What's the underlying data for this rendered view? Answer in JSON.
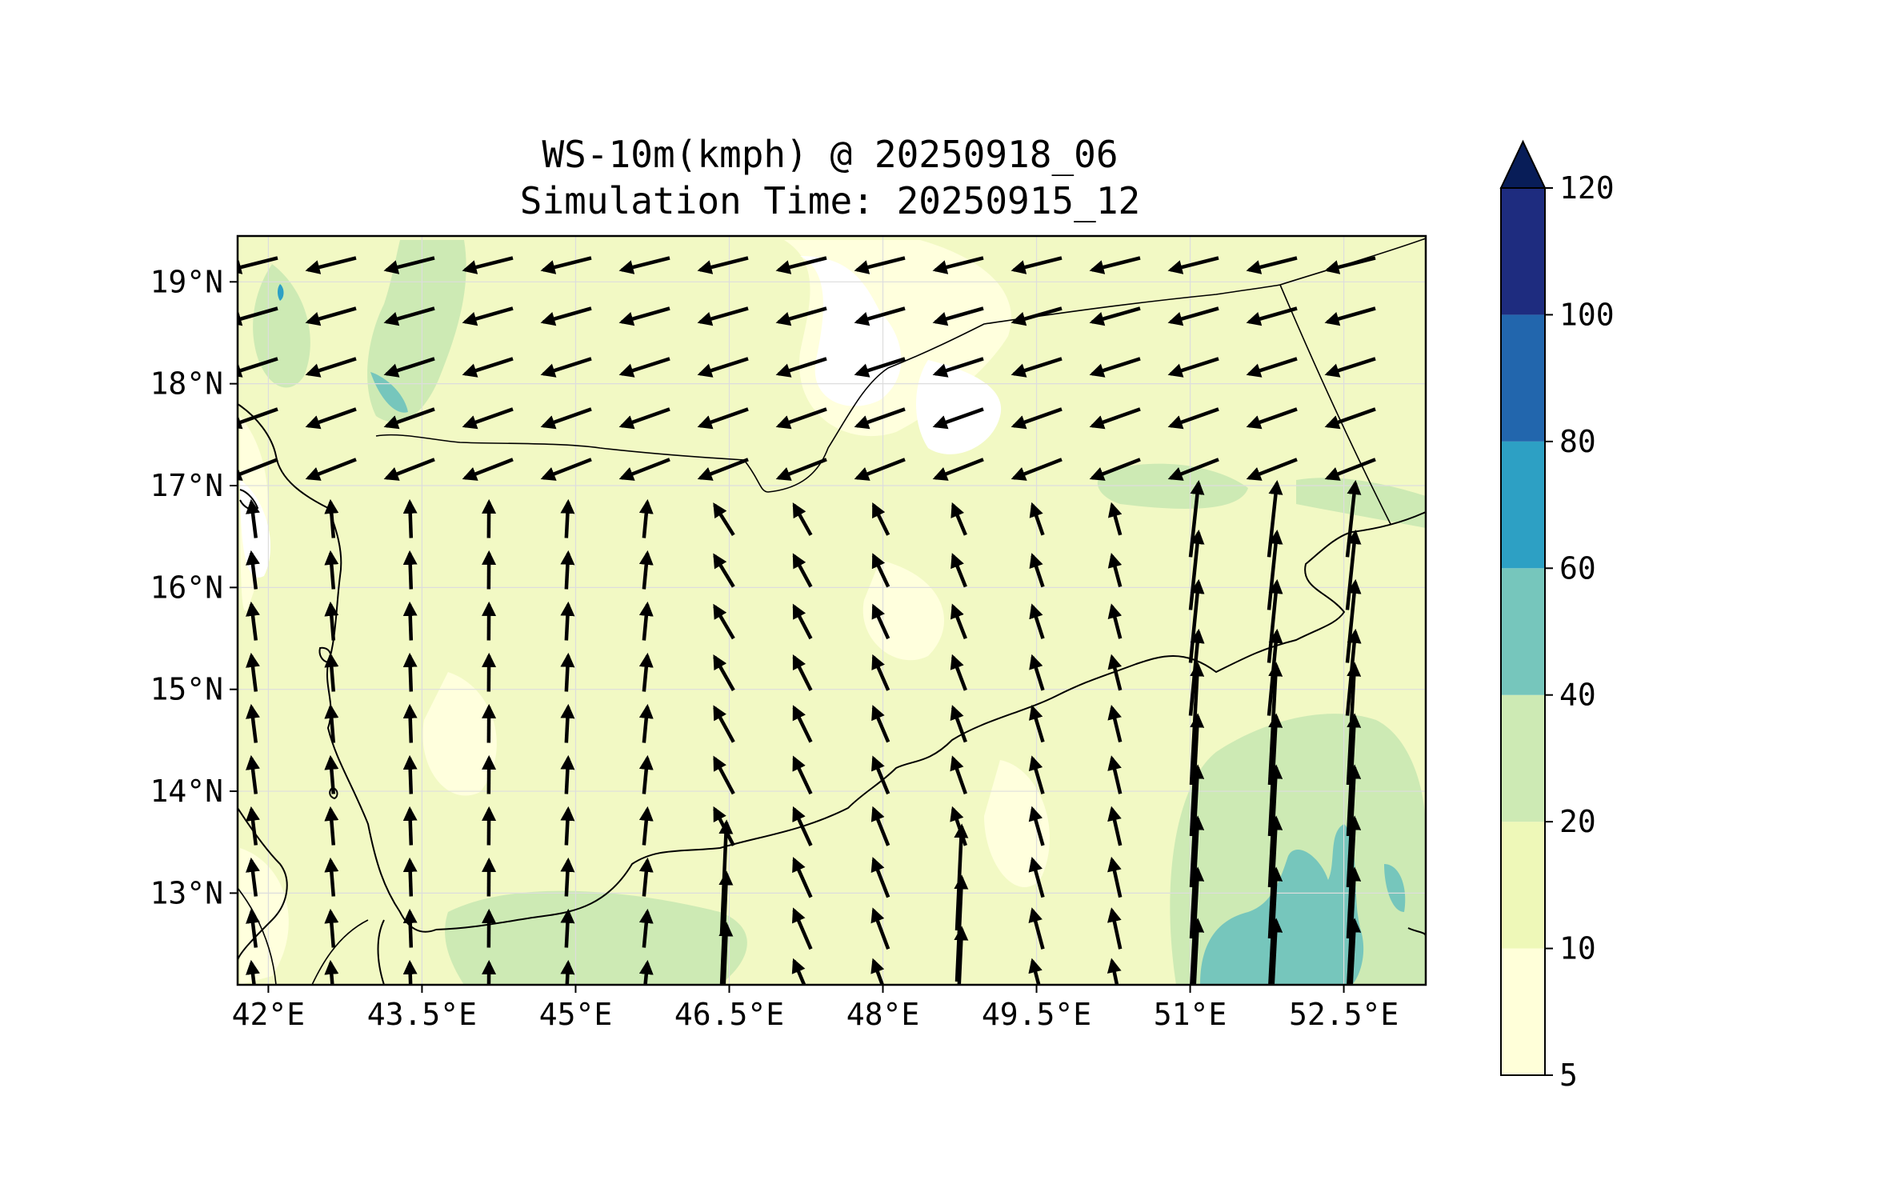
{
  "title": {
    "line1": "WS-10m(kmph) @ 20250918_06",
    "line2": "Simulation Time: 20250915_12"
  },
  "map": {
    "lon_range": [
      41.7,
      53.3
    ],
    "lat_range": [
      12.1,
      19.45
    ],
    "lon_ticks": [
      42,
      43.5,
      45,
      46.5,
      48,
      49.5,
      51,
      52.5
    ],
    "lon_tick_labels": [
      "42°E",
      "43.5°E",
      "45°E",
      "46.5°E",
      "48°E",
      "49.5°E",
      "51°E",
      "52.5°E"
    ],
    "lat_ticks": [
      13,
      14,
      15,
      16,
      17,
      18,
      19
    ],
    "lat_tick_labels": [
      "13°N",
      "14°N",
      "15°N",
      "16°N",
      "17°N",
      "18°N",
      "19°N"
    ],
    "grid": true,
    "field": "10 m wind speed (kmph) with wind vectors",
    "colors": {
      "frame": "#000000",
      "coastline": "#000000",
      "borders": "#000000",
      "arrows": "#000000",
      "grid": "#dddddd"
    }
  },
  "colorbar": {
    "levels": [
      5,
      10,
      20,
      40,
      60,
      80,
      100,
      120
    ],
    "tick_labels": [
      "5",
      "10",
      "20",
      "40",
      "60",
      "80",
      "100",
      "120"
    ],
    "colors": [
      "#ffffd9",
      "#eef8b8",
      "#cdeab4",
      "#76c6bc",
      "#2da0c4",
      "#2266ad",
      "#1e2c7f"
    ],
    "extend_color": "#081d58",
    "extend": "max"
  },
  "chart_data": {
    "type": "heatmap",
    "title": "WS-10m(kmph) @ 20250918_06 / Simulation Time: 20250915_12",
    "x_label": "",
    "y_label": "",
    "x_range": [
      41.7,
      53.3
    ],
    "y_range": [
      12.1,
      19.45
    ],
    "notes": "Shaded 10 m wind speed with arrows; speeds mostly 5-20 kmph, 20-60 kmph in south-east (Arabian Sea, near 52-53°E)."
  }
}
